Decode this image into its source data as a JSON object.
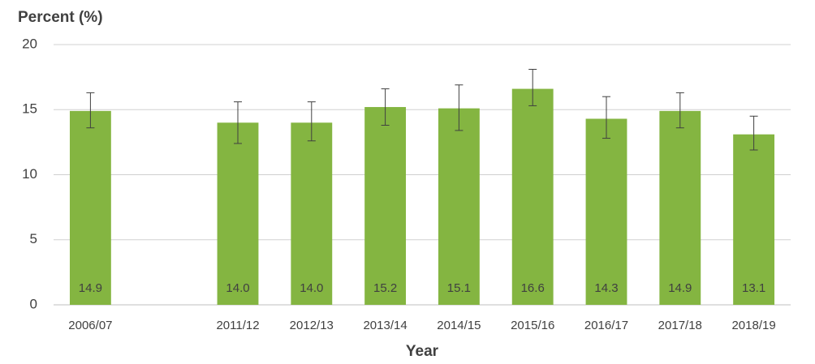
{
  "chart_data": {
    "type": "bar",
    "y_axis_label": "Percent (%)",
    "x_axis_label": "Year",
    "categories": [
      "2006/07",
      null,
      "2011/12",
      "2012/13",
      "2013/14",
      "2014/15",
      "2015/16",
      "2016/17",
      "2017/18",
      "2018/19"
    ],
    "values": [
      14.9,
      null,
      14.0,
      14.0,
      15.2,
      15.1,
      16.6,
      14.3,
      14.9,
      13.1
    ],
    "value_labels": [
      "14.9",
      null,
      "14.0",
      "14.0",
      "15.2",
      "15.1",
      "16.6",
      "14.3",
      "14.9",
      "13.1"
    ],
    "ci_lower": [
      13.6,
      null,
      12.4,
      12.6,
      13.8,
      13.4,
      15.3,
      12.8,
      13.6,
      11.9
    ],
    "ci_upper": [
      16.3,
      null,
      15.6,
      15.6,
      16.6,
      16.9,
      18.1,
      16.0,
      16.3,
      14.5
    ],
    "color": "#84b541",
    "ylim": [
      0,
      20
    ],
    "yticks": [
      0,
      5,
      10,
      15,
      20
    ],
    "grid": true
  }
}
